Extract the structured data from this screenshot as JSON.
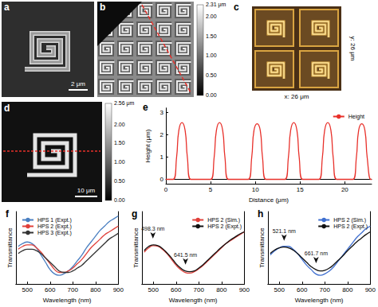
{
  "panels": [
    {
      "label": "a",
      "scale_bar": "2 μm"
    },
    {
      "label": "b",
      "colorbar": {
        "min": 0,
        "max": 2.31,
        "ticks": [
          {
            "value": 0,
            "label": "0.00"
          },
          {
            "value": 0.5,
            "label": "0.50"
          },
          {
            "value": 1,
            "label": "1.00"
          },
          {
            "value": 1.5,
            "label": "1.50"
          },
          {
            "value": 2,
            "label": "2.00"
          },
          {
            "value": 2.31,
            "label": "2.31 μm"
          }
        ]
      }
    },
    {
      "label": "c",
      "x_extent": "x: 26 μm",
      "y_extent": "y: 26 μm"
    },
    {
      "label": "d",
      "scale_bar": "10 μm",
      "colorbar": {
        "min": 0,
        "max": 2.56,
        "ticks": [
          {
            "value": 0,
            "label": "0.00"
          },
          {
            "value": 0.5,
            "label": "0.50"
          },
          {
            "value": 1,
            "label": "1.00"
          },
          {
            "value": 1.5,
            "label": "1.50"
          },
          {
            "value": 2,
            "label": "2.00"
          },
          {
            "value": 2.56,
            "label": "2.56 μm"
          }
        ]
      }
    }
  ],
  "chart_data": [
    {
      "type": "line",
      "title": "e",
      "x_label": "Distance (μm)",
      "y_label": "Height (μm)",
      "x": [
        0,
        0.8,
        1.2,
        1.45,
        1.8,
        2.15,
        2.4,
        2.8,
        5.0,
        5.4,
        5.65,
        6.0,
        6.35,
        6.6,
        7.0,
        9.2,
        9.6,
        9.85,
        10.2,
        10.55,
        10.8,
        11.2,
        13.3,
        13.7,
        13.95,
        14.3,
        14.65,
        14.9,
        15.3,
        17.1,
        17.5,
        17.75,
        18.1,
        18.45,
        18.7,
        19.1,
        20.9,
        21.3,
        21.55,
        21.9,
        22.25,
        22.5,
        22.9,
        23
      ],
      "series": [
        {
          "name": "Height",
          "color": "#e8302a",
          "values": [
            0,
            0,
            1.0,
            2.2,
            2.55,
            2.2,
            1.0,
            0,
            0,
            1.0,
            2.2,
            2.55,
            2.2,
            1.0,
            0,
            0,
            1.0,
            2.2,
            2.5,
            2.2,
            1.0,
            0,
            0,
            1.0,
            2.2,
            2.55,
            2.2,
            1.0,
            0,
            0,
            1.0,
            2.2,
            2.55,
            2.2,
            1.0,
            0,
            0,
            1.0,
            2.2,
            2.5,
            2.2,
            1.0,
            0,
            0
          ]
        }
      ],
      "xlim": [
        0,
        23
      ],
      "ylim": [
        -0.2,
        3.2
      ],
      "xticks": [
        0,
        5,
        10,
        15,
        20
      ],
      "yticks": [
        0,
        1,
        2,
        3
      ],
      "grid": false,
      "legend": "upper right"
    },
    {
      "type": "line",
      "title": "f",
      "x_label": "Wavelength (nm)",
      "y_label": "Transmittance",
      "x": [
        460,
        480,
        500,
        520,
        540,
        560,
        580,
        600,
        620,
        640,
        660,
        680,
        700,
        720,
        740,
        760,
        780,
        800,
        820,
        840,
        860,
        880,
        900
      ],
      "series": [
        {
          "name": "HPS 1 (Expt.)",
          "color": "#4a7fc1",
          "values": [
            0.26,
            0.28,
            0.29,
            0.28,
            0.25,
            0.2,
            0.15,
            0.1,
            0.07,
            0.06,
            0.07,
            0.09,
            0.12,
            0.16,
            0.2,
            0.25,
            0.29,
            0.33,
            0.37,
            0.4,
            0.43,
            0.45,
            0.47
          ]
        },
        {
          "name": "HPS 2 (Expt.)",
          "color": "#e0403a",
          "values": [
            0.24,
            0.26,
            0.27,
            0.27,
            0.25,
            0.22,
            0.18,
            0.14,
            0.1,
            0.08,
            0.08,
            0.09,
            0.11,
            0.14,
            0.17,
            0.21,
            0.25,
            0.28,
            0.31,
            0.34,
            0.36,
            0.38,
            0.4
          ]
        },
        {
          "name": "HPS 3 (Expt.)",
          "color": "#333333",
          "values": [
            0.21,
            0.23,
            0.24,
            0.24,
            0.23,
            0.21,
            0.18,
            0.15,
            0.12,
            0.09,
            0.08,
            0.08,
            0.09,
            0.11,
            0.13,
            0.16,
            0.19,
            0.22,
            0.25,
            0.28,
            0.31,
            0.33,
            0.35
          ]
        }
      ],
      "xlim": [
        450,
        900
      ],
      "ylim": [
        0,
        0.5
      ],
      "xticks": [
        500,
        600,
        700,
        800,
        900
      ],
      "tick_labels": "x",
      "grid": false,
      "legend": "upper left"
    },
    {
      "type": "line",
      "title": "g",
      "x_label": "Wavelength (nm)",
      "y_label": "Transmittance",
      "x": [
        460,
        480,
        500,
        520,
        540,
        560,
        580,
        600,
        620,
        640,
        660,
        680,
        700,
        720,
        740,
        760,
        780,
        800,
        820,
        840,
        860,
        880,
        900
      ],
      "series": [
        {
          "name": "HPS 2 (Sim.)",
          "color": "#e0403a",
          "values": [
            0.22,
            0.25,
            0.265,
            0.26,
            0.24,
            0.21,
            0.17,
            0.13,
            0.1,
            0.08,
            0.075,
            0.085,
            0.105,
            0.13,
            0.16,
            0.19,
            0.22,
            0.25,
            0.28,
            0.3,
            0.32,
            0.34,
            0.36
          ]
        },
        {
          "name": "HPS 2 (Expt.)",
          "color": "#111111",
          "values": [
            0.23,
            0.26,
            0.27,
            0.265,
            0.245,
            0.215,
            0.18,
            0.14,
            0.11,
            0.09,
            0.085,
            0.09,
            0.11,
            0.135,
            0.165,
            0.195,
            0.225,
            0.255,
            0.28,
            0.305,
            0.325,
            0.345,
            0.36
          ],
          "annotations": [
            {
              "x": 498.3,
              "label": "498.3 nm"
            },
            {
              "x": 641.5,
              "label": "641.5 nm"
            }
          ]
        }
      ],
      "xlim": [
        450,
        900
      ],
      "ylim": [
        0,
        0.5
      ],
      "xticks": [
        500,
        600,
        700,
        800,
        900
      ],
      "tick_labels": "x",
      "grid": false,
      "legend": "upper right"
    },
    {
      "type": "line",
      "title": "h",
      "x_label": "Wavelength (nm)",
      "y_label": "Transmittance",
      "x": [
        460,
        480,
        500,
        520,
        540,
        560,
        580,
        600,
        620,
        640,
        660,
        680,
        700,
        720,
        740,
        760,
        780,
        800,
        820,
        840,
        860,
        880,
        900
      ],
      "series": [
        {
          "name": "HPS 2 (Sim.)",
          "color": "#3f6fd0",
          "values": [
            0.2,
            0.23,
            0.25,
            0.26,
            0.26,
            0.24,
            0.21,
            0.17,
            0.13,
            0.1,
            0.07,
            0.06,
            0.07,
            0.09,
            0.12,
            0.16,
            0.2,
            0.24,
            0.28,
            0.32,
            0.35,
            0.38,
            0.4
          ]
        },
        {
          "name": "HPS 2 (Expt.)",
          "color": "#111111",
          "values": [
            0.21,
            0.235,
            0.25,
            0.255,
            0.25,
            0.235,
            0.21,
            0.18,
            0.15,
            0.12,
            0.1,
            0.09,
            0.095,
            0.11,
            0.135,
            0.165,
            0.195,
            0.23,
            0.26,
            0.29,
            0.315,
            0.34,
            0.36
          ],
          "annotations": [
            {
              "x": 521.1,
              "label": "521.1 nm"
            },
            {
              "x": 661.7,
              "label": "661.7 nm"
            }
          ]
        }
      ],
      "xlim": [
        450,
        900
      ],
      "ylim": [
        0,
        0.5
      ],
      "xticks": [
        500,
        600,
        700,
        800,
        900
      ],
      "tick_labels": "x",
      "grid": false,
      "legend": "upper right"
    }
  ]
}
